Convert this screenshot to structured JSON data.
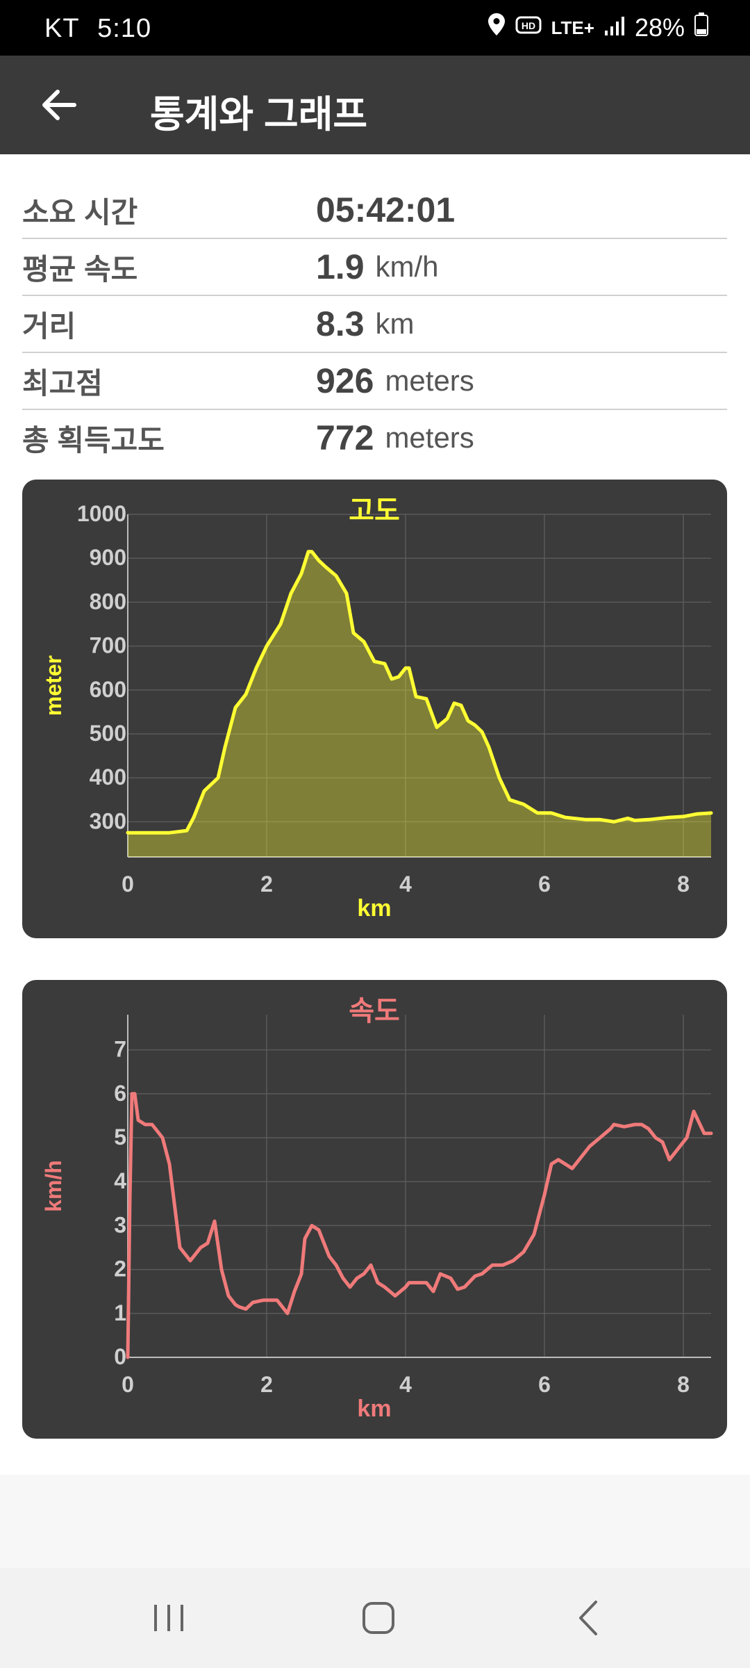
{
  "status_bar": {
    "carrier": "KT",
    "time": "5:10",
    "network": "LTE+",
    "battery": "28%",
    "icons": [
      "location-icon",
      "hd-voice-icon",
      "lte-icon",
      "signal-icon",
      "battery-icon"
    ]
  },
  "header": {
    "title": "통계와 그래프",
    "back_icon": "arrow-left-icon"
  },
  "stats": [
    {
      "label": "소요 시간",
      "value": "05:42:01",
      "unit": ""
    },
    {
      "label": "평균 속도",
      "value": "1.9",
      "unit": "km/h"
    },
    {
      "label": "거리",
      "value": "8.3",
      "unit": "km"
    },
    {
      "label": "최고점",
      "value": "926",
      "unit": "meters"
    },
    {
      "label": "총 획득고도",
      "value": "772",
      "unit": "meters"
    }
  ],
  "colors": {
    "altitude": "#ffff33",
    "speed": "#f07a7a",
    "card_bg": "#3b3b3b",
    "grid": "#5a5a5a",
    "tick_text": "#d0d0d0"
  },
  "chart_data": [
    {
      "type": "area",
      "title": "고도",
      "xlabel": "km",
      "ylabel": "meter",
      "xlim": [
        0,
        8.4
      ],
      "ylim": [
        220,
        1000
      ],
      "xticks": [
        0,
        2,
        4,
        6,
        8
      ],
      "yticks": [
        300,
        400,
        500,
        600,
        700,
        800,
        900,
        1000
      ],
      "grid": true,
      "x": [
        0,
        0.3,
        0.6,
        0.85,
        0.95,
        1.1,
        1.3,
        1.4,
        1.55,
        1.7,
        1.85,
        2.0,
        2.2,
        2.35,
        2.5,
        2.6,
        2.65,
        2.75,
        2.85,
        3.0,
        3.15,
        3.25,
        3.4,
        3.55,
        3.7,
        3.8,
        3.9,
        4.0,
        4.05,
        4.15,
        4.3,
        4.45,
        4.6,
        4.7,
        4.8,
        4.9,
        5.0,
        5.1,
        5.2,
        5.35,
        5.5,
        5.7,
        5.9,
        6.1,
        6.3,
        6.6,
        6.8,
        7.0,
        7.2,
        7.3,
        7.5,
        7.8,
        8.0,
        8.2,
        8.4
      ],
      "y": [
        275,
        275,
        275,
        280,
        310,
        370,
        400,
        470,
        560,
        590,
        650,
        700,
        750,
        820,
        865,
        915,
        915,
        895,
        880,
        860,
        820,
        730,
        710,
        665,
        660,
        625,
        630,
        650,
        650,
        585,
        580,
        515,
        535,
        570,
        565,
        530,
        520,
        505,
        470,
        400,
        350,
        340,
        320,
        320,
        310,
        305,
        305,
        300,
        308,
        303,
        305,
        310,
        312,
        318,
        320
      ]
    },
    {
      "type": "line",
      "title": "속도",
      "xlabel": "km",
      "ylabel": "km/h",
      "xlim": [
        0,
        8.4
      ],
      "ylim": [
        0,
        7.8
      ],
      "xticks": [
        0,
        2,
        4,
        6,
        8
      ],
      "yticks": [
        0,
        1,
        2,
        3,
        4,
        5,
        6,
        7
      ],
      "grid": true,
      "x": [
        0,
        0.03,
        0.06,
        0.1,
        0.15,
        0.25,
        0.35,
        0.5,
        0.6,
        0.75,
        0.9,
        1.0,
        1.05,
        1.15,
        1.25,
        1.35,
        1.45,
        1.55,
        1.6,
        1.7,
        1.8,
        1.95,
        2.0,
        2.15,
        2.3,
        2.4,
        2.5,
        2.55,
        2.65,
        2.75,
        2.9,
        3.0,
        3.1,
        3.2,
        3.3,
        3.4,
        3.5,
        3.6,
        3.7,
        3.85,
        4.0,
        4.05,
        4.15,
        4.3,
        4.4,
        4.5,
        4.65,
        4.75,
        4.85,
        5.0,
        5.1,
        5.25,
        5.4,
        5.55,
        5.7,
        5.85,
        6.0,
        6.1,
        6.2,
        6.3,
        6.4,
        6.5,
        6.65,
        6.8,
        6.95,
        7.0,
        7.15,
        7.3,
        7.4,
        7.5,
        7.6,
        7.7,
        7.8,
        7.95,
        8.05,
        8.15,
        8.3,
        8.4
      ],
      "y": [
        0,
        3.6,
        6.0,
        6.0,
        5.4,
        5.3,
        5.3,
        5.0,
        4.4,
        2.5,
        2.2,
        2.4,
        2.5,
        2.6,
        3.1,
        2.0,
        1.4,
        1.2,
        1.15,
        1.1,
        1.25,
        1.3,
        1.3,
        1.3,
        1.0,
        1.5,
        1.9,
        2.7,
        3.0,
        2.9,
        2.3,
        2.1,
        1.8,
        1.6,
        1.8,
        1.9,
        2.1,
        1.7,
        1.6,
        1.4,
        1.6,
        1.7,
        1.7,
        1.7,
        1.5,
        1.9,
        1.8,
        1.55,
        1.6,
        1.85,
        1.9,
        2.1,
        2.1,
        2.2,
        2.4,
        2.8,
        3.7,
        4.4,
        4.5,
        4.4,
        4.3,
        4.5,
        4.8,
        5.0,
        5.2,
        5.3,
        5.25,
        5.3,
        5.3,
        5.2,
        5.0,
        4.9,
        4.5,
        4.8,
        5.0,
        5.6,
        5.1,
        5.1
      ]
    }
  ]
}
